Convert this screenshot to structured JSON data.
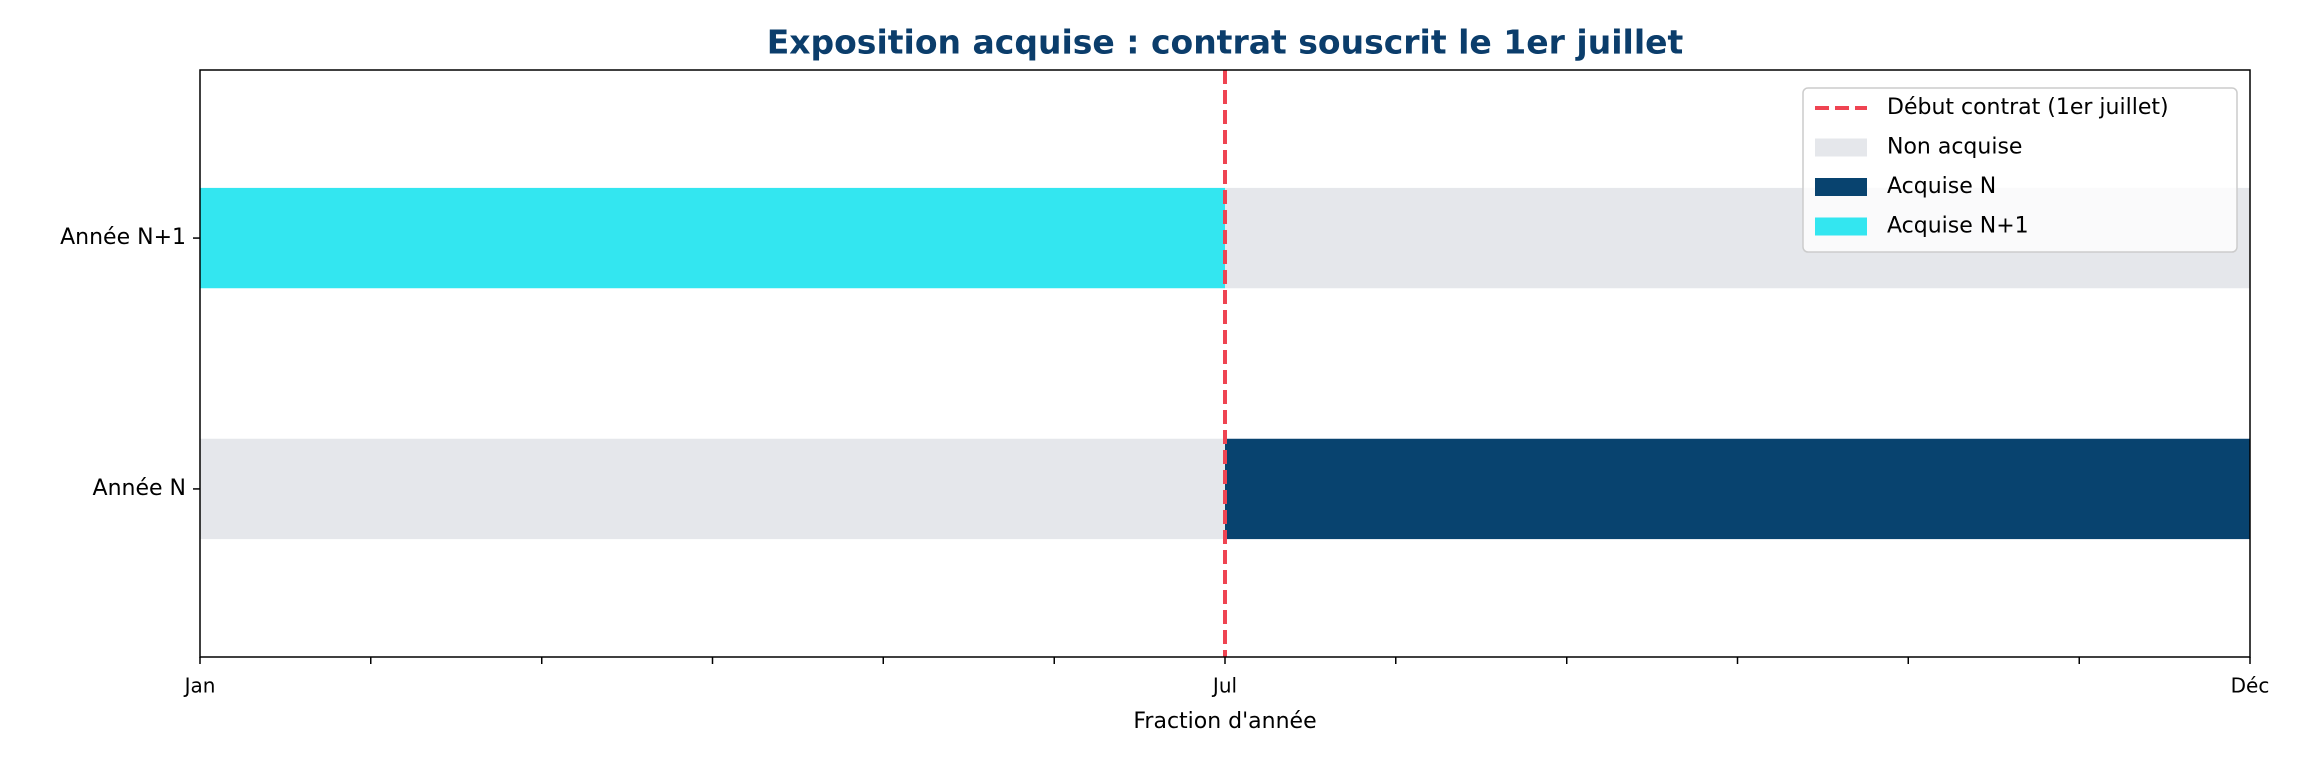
{
  "chart_data": {
    "type": "broken-bar",
    "title": "Exposition acquise : contrat souscrit le 1er juillet",
    "xlabel": "Fraction d'année",
    "categories": [
      "Année N",
      "Année N+1"
    ],
    "series": [
      {
        "name": "Non acquise",
        "color": "#e5e7eb",
        "values": [
          [
            0,
            0.5
          ],
          [
            0.5,
            1
          ]
        ]
      },
      {
        "name": "Acquise N",
        "color": "#08436f",
        "values": [
          [
            0.5,
            1
          ],
          null
        ]
      },
      {
        "name": "Acquise N+1",
        "color": "#33e6f0",
        "values": [
          null,
          [
            0,
            0.5
          ]
        ]
      }
    ],
    "vline": {
      "name": "Début contrat (1er juillet)",
      "value": 0.5,
      "color": "#ef4452"
    },
    "xlim": [
      0,
      1
    ],
    "xticks": [
      {
        "value": 0,
        "label": "Jan"
      },
      {
        "value": 0.0833,
        "label": null
      },
      {
        "value": 0.1667,
        "label": null
      },
      {
        "value": 0.25,
        "label": null
      },
      {
        "value": 0.3333,
        "label": null
      },
      {
        "value": 0.4167,
        "label": null
      },
      {
        "value": 0.5,
        "label": "Jul"
      },
      {
        "value": 0.5833,
        "label": null
      },
      {
        "value": 0.6667,
        "label": null
      },
      {
        "value": 0.75,
        "label": null
      },
      {
        "value": 0.8333,
        "label": null
      },
      {
        "value": 0.9167,
        "label": null
      },
      {
        "value": 1,
        "label": "Déc"
      }
    ],
    "legend": "upper right"
  }
}
